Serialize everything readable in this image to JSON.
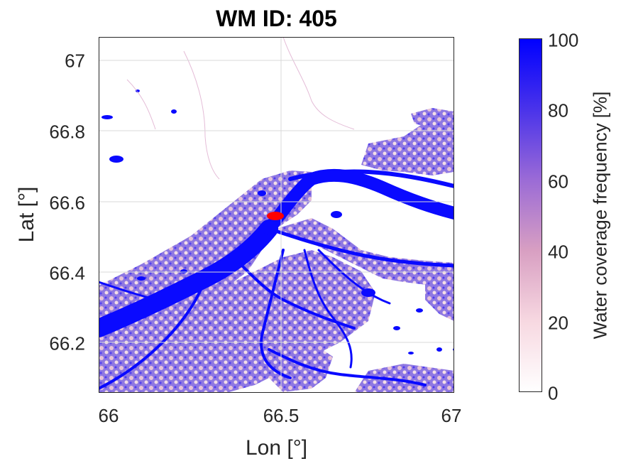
{
  "title": "WM ID: 405",
  "xlabel": "Lon [°]",
  "ylabel": "Lat [°]",
  "x_ticks": [
    "66",
    "66.5",
    "67"
  ],
  "y_ticks": [
    "67",
    "66.8",
    "66.6",
    "66.4",
    "66.2"
  ],
  "colorbar": {
    "label": "Water coverage frequency [%]",
    "ticks": [
      "100",
      "80",
      "60",
      "40",
      "20",
      "0"
    ],
    "colors": [
      "#ffffff",
      "#f7d8e1",
      "#d89fc2",
      "#9b6bd6",
      "#4a33ea",
      "#0000ff"
    ]
  },
  "map": {
    "lon_range": [
      65.98,
      67.0
    ],
    "lat_range": [
      66.05,
      67.06
    ],
    "marker": {
      "lon": 66.49,
      "lat": 66.56,
      "color": "#ff0000"
    },
    "river_color": "#0a0aff",
    "wetland_color": "#7b5ee0",
    "grid": true
  }
}
